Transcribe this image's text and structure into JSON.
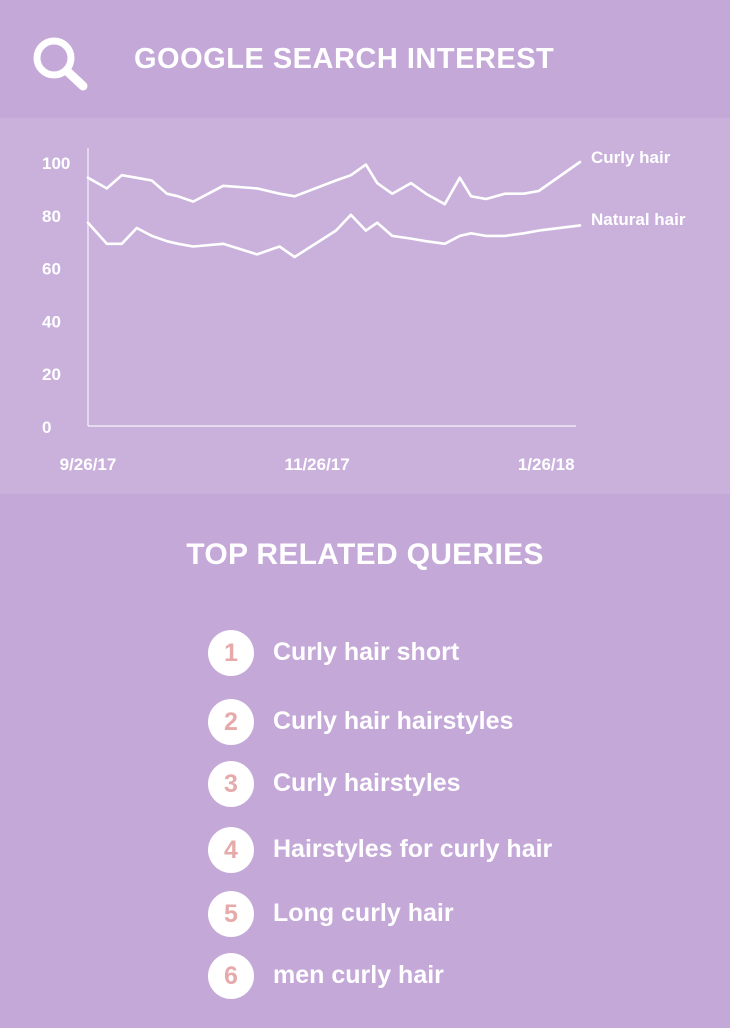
{
  "header": {
    "title": "GOOGLE SEARCH INTEREST",
    "icon": "search-icon"
  },
  "colors": {
    "background": "#c4a8d8",
    "chart_panel": "#c9b1dc",
    "line": "#ffffff",
    "number_text": "#e6aaaa"
  },
  "chart_data": {
    "type": "line",
    "title": "",
    "xlabel": "",
    "ylabel": "",
    "ylim": [
      0,
      100
    ],
    "yticks": [
      "0",
      "20",
      "40",
      "60",
      "80",
      "100"
    ],
    "xtick_labels": [
      "9/26/17",
      "11/26/17",
      "1/26/18"
    ],
    "x": [
      "9/26/17",
      "10/1/17",
      "10/5/17",
      "10/9/17",
      "10/13/17",
      "10/17/17",
      "10/20/17",
      "10/24/17",
      "11/1/17",
      "11/10/17",
      "11/16/17",
      "11/20/17",
      "12/1/17",
      "12/5/17",
      "12/9/17",
      "12/12/17",
      "12/16/17",
      "12/21/17",
      "12/25/17",
      "12/30/17",
      "1/3/18",
      "1/6/18",
      "1/10/18",
      "1/15/18",
      "1/20/18",
      "1/24/18",
      "2/4/18"
    ],
    "grid": false,
    "legend": "right",
    "series": [
      {
        "name": "Curly hair",
        "values": [
          94,
          90,
          95,
          94,
          93,
          88,
          87,
          85,
          91,
          90,
          88,
          87,
          93,
          95,
          99,
          92,
          88,
          92,
          88,
          84,
          94,
          87,
          86,
          88,
          88,
          89,
          100
        ]
      },
      {
        "name": "Natural hair",
        "values": [
          77,
          69,
          69,
          75,
          72,
          70,
          69,
          68,
          69,
          65,
          68,
          64,
          74,
          80,
          74,
          77,
          72,
          71,
          70,
          69,
          72,
          73,
          72,
          72,
          73,
          74,
          76
        ]
      }
    ]
  },
  "queries": {
    "title": "TOP RELATED QUERIES",
    "items": [
      {
        "num": "1",
        "label": "Curly hair short"
      },
      {
        "num": "2",
        "label": "Curly hair hairstyles"
      },
      {
        "num": "3",
        "label": "Curly hairstyles"
      },
      {
        "num": "4",
        "label": "Hairstyles for curly hair"
      },
      {
        "num": "5",
        "label": "Long curly hair"
      },
      {
        "num": "6",
        "label": "men curly hair"
      }
    ]
  }
}
